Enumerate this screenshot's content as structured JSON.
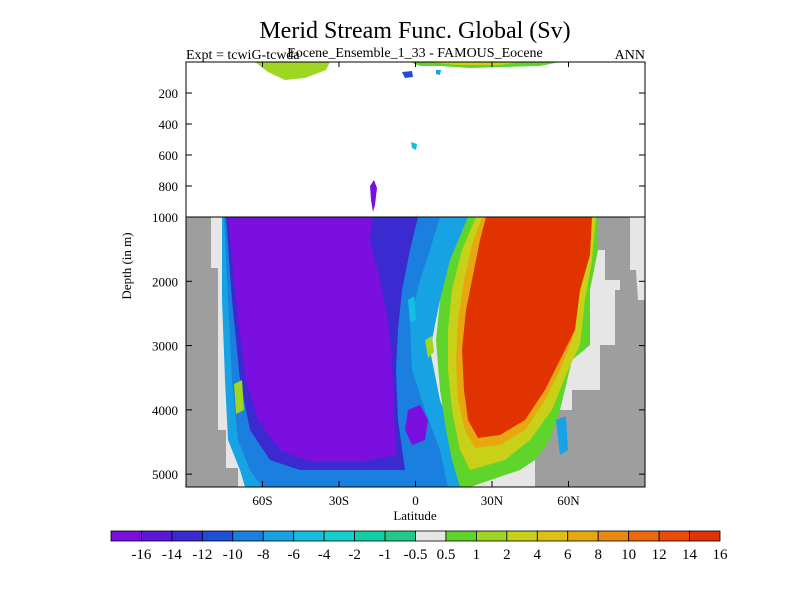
{
  "chart_data": {
    "type": "heatmap",
    "title": "Merid Stream Func. Global (Sv)",
    "subtitle_left": "Expt = tcwiG-tcwda",
    "subtitle_center": "Eocene_Ensemble_1_33 - FAMOUS_Eocene",
    "subtitle_right": "ANN",
    "xlabel": "Latitude",
    "ylabel": "Depth (in m)",
    "xlim": [
      -90,
      90
    ],
    "x_ticks": [
      -60,
      -30,
      0,
      30,
      60
    ],
    "x_tick_labels": [
      "60S",
      "30S",
      "0",
      "30N",
      "60N"
    ],
    "upper_ylim": [
      0,
      1000
    ],
    "upper_y_ticks": [
      200,
      400,
      600,
      800,
      1000
    ],
    "upper_y_tick_labels": [
      "200",
      "400",
      "600",
      "800",
      "1000"
    ],
    "lower_ylim": [
      1000,
      5200
    ],
    "lower_y_ticks": [
      2000,
      3000,
      4000,
      5000
    ],
    "lower_y_tick_labels": [
      "2000",
      "3000",
      "4000",
      "5000"
    ],
    "colorbar": {
      "levels": [
        "-16",
        "-14",
        "-12",
        "-10",
        "-8",
        "-6",
        "-4",
        "-2",
        "-1",
        "-0.5",
        "0.5",
        "1",
        "2",
        "4",
        "6",
        "8",
        "10",
        "12",
        "14",
        "16"
      ],
      "colors": [
        "#7b0fe0",
        "#5c16d8",
        "#3a2ad0",
        "#1f4fd8",
        "#1b7fe0",
        "#17a3e3",
        "#12bfe0",
        "#0fcfd0",
        "#0ecfa8",
        "#22c98a",
        "#e6e6e6",
        "#5fd42a",
        "#9ed622",
        "#c8d018",
        "#dcc012",
        "#e6a80e",
        "#ea8a0c",
        "#ec6a0a",
        "#ec4806",
        "#e03300"
      ]
    },
    "grid": false,
    "mask_color": "#9e9e9e",
    "positive_cell_color": "#e03300",
    "negative_cell_color": "#7b0fe0"
  }
}
